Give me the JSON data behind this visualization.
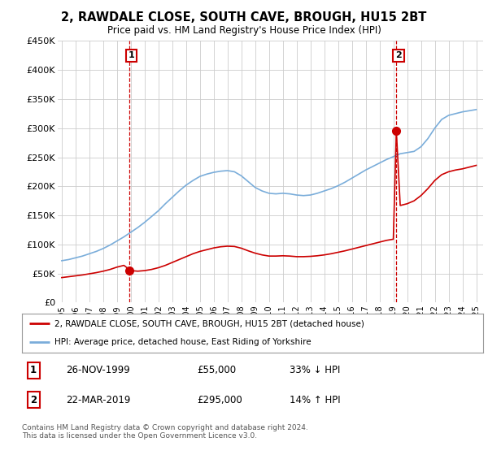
{
  "title": "2, RAWDALE CLOSE, SOUTH CAVE, BROUGH, HU15 2BT",
  "subtitle": "Price paid vs. HM Land Registry's House Price Index (HPI)",
  "title_fontsize": 10.5,
  "subtitle_fontsize": 8.5,
  "ylim": [
    0,
    450000
  ],
  "xlim_start": 1994.7,
  "xlim_end": 2025.5,
  "yticks": [
    0,
    50000,
    100000,
    150000,
    200000,
    250000,
    300000,
    350000,
    400000,
    450000
  ],
  "ytick_labels": [
    "£0",
    "£50K",
    "£100K",
    "£150K",
    "£200K",
    "£250K",
    "£300K",
    "£350K",
    "£400K",
    "£450K"
  ],
  "xticks": [
    1995,
    1996,
    1997,
    1998,
    1999,
    2000,
    2001,
    2002,
    2003,
    2004,
    2005,
    2006,
    2007,
    2008,
    2009,
    2010,
    2011,
    2012,
    2013,
    2014,
    2015,
    2016,
    2017,
    2018,
    2019,
    2020,
    2021,
    2022,
    2023,
    2024,
    2025
  ],
  "red_line_color": "#cc0000",
  "blue_line_color": "#7aadda",
  "sale1_x": 1999.9,
  "sale1_y": 55000,
  "sale2_x": 2019.22,
  "sale2_y": 295000,
  "legend_line1": "2, RAWDALE CLOSE, SOUTH CAVE, BROUGH, HU15 2BT (detached house)",
  "legend_line2": "HPI: Average price, detached house, East Riding of Yorkshire",
  "table_row1": [
    "1",
    "26-NOV-1999",
    "£55,000",
    "33% ↓ HPI"
  ],
  "table_row2": [
    "2",
    "22-MAR-2019",
    "£295,000",
    "14% ↑ HPI"
  ],
  "footer": "Contains HM Land Registry data © Crown copyright and database right 2024.\nThis data is licensed under the Open Government Licence v3.0.",
  "bg_color": "#ffffff",
  "grid_color": "#cccccc",
  "hpi_x": [
    1995.0,
    1995.5,
    1996.0,
    1996.5,
    1997.0,
    1997.5,
    1998.0,
    1998.5,
    1999.0,
    1999.5,
    2000.0,
    2000.5,
    2001.0,
    2001.5,
    2002.0,
    2002.5,
    2003.0,
    2003.5,
    2004.0,
    2004.5,
    2005.0,
    2005.5,
    2006.0,
    2006.5,
    2007.0,
    2007.5,
    2008.0,
    2008.5,
    2009.0,
    2009.5,
    2010.0,
    2010.5,
    2011.0,
    2011.5,
    2012.0,
    2012.5,
    2013.0,
    2013.5,
    2014.0,
    2014.5,
    2015.0,
    2015.5,
    2016.0,
    2016.5,
    2017.0,
    2017.5,
    2018.0,
    2018.5,
    2019.0,
    2019.5,
    2020.0,
    2020.5,
    2021.0,
    2021.5,
    2022.0,
    2022.5,
    2023.0,
    2023.5,
    2024.0,
    2024.5,
    2025.0
  ],
  "hpi_y": [
    72000,
    74000,
    77000,
    80000,
    84000,
    88000,
    93000,
    99000,
    106000,
    113000,
    121000,
    129000,
    138000,
    148000,
    158000,
    170000,
    181000,
    192000,
    202000,
    210000,
    217000,
    221000,
    224000,
    226000,
    227000,
    225000,
    218000,
    208000,
    198000,
    192000,
    188000,
    187000,
    188000,
    187000,
    185000,
    184000,
    185000,
    188000,
    192000,
    196000,
    201000,
    207000,
    214000,
    221000,
    228000,
    234000,
    240000,
    246000,
    251000,
    256000,
    258000,
    260000,
    268000,
    282000,
    300000,
    315000,
    322000,
    325000,
    328000,
    330000,
    332000
  ],
  "red_x": [
    1995.0,
    1995.5,
    1996.0,
    1996.5,
    1997.0,
    1997.5,
    1998.0,
    1998.5,
    1999.0,
    1999.5,
    2000.0,
    2000.5,
    2001.0,
    2001.5,
    2002.0,
    2002.5,
    2003.0,
    2003.5,
    2004.0,
    2004.5,
    2005.0,
    2005.5,
    2006.0,
    2006.5,
    2007.0,
    2007.5,
    2008.0,
    2008.5,
    2009.0,
    2009.5,
    2010.0,
    2010.5,
    2011.0,
    2011.5,
    2012.0,
    2012.5,
    2013.0,
    2013.5,
    2014.0,
    2014.5,
    2015.0,
    2015.5,
    2016.0,
    2016.5,
    2017.0,
    2017.5,
    2018.0,
    2018.5,
    2019.0,
    2019.22,
    2019.5,
    2020.0,
    2020.5,
    2021.0,
    2021.5,
    2022.0,
    2022.5,
    2023.0,
    2023.5,
    2024.0,
    2024.5,
    2025.0
  ],
  "red_y": [
    43000,
    44500,
    46000,
    47500,
    49500,
    51500,
    54000,
    57000,
    61000,
    64000,
    55000,
    54000,
    55000,
    57000,
    60000,
    64000,
    69000,
    74000,
    79000,
    84000,
    88000,
    91000,
    94000,
    96000,
    97000,
    96500,
    93500,
    89000,
    85000,
    82000,
    80000,
    80000,
    80500,
    80000,
    79000,
    79000,
    79500,
    80500,
    82000,
    84000,
    86500,
    89000,
    92000,
    95000,
    98000,
    101000,
    104000,
    107000,
    109000,
    295000,
    167000,
    170000,
    175000,
    184000,
    196000,
    210000,
    220000,
    225000,
    228000,
    230000,
    233000,
    236000
  ]
}
